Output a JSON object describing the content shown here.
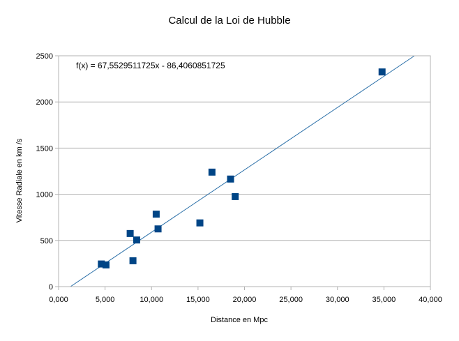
{
  "chart_data": {
    "type": "scatter",
    "title": "Calcul de la Loi de Hubble",
    "xlabel": "Distance en Mpc",
    "ylabel": "Vitesse Radiale en km /s",
    "xlim": [
      0,
      40
    ],
    "ylim": [
      0,
      2500
    ],
    "x_ticks": [
      "0,000",
      "5,000",
      "10,000",
      "15,000",
      "20,000",
      "25,000",
      "30,000",
      "35,000",
      "40,000"
    ],
    "y_ticks": [
      "0",
      "500",
      "1000",
      "1500",
      "2000",
      "2500"
    ],
    "grid": "horizontal",
    "legend": "none",
    "series": [
      {
        "color": "#004586",
        "marker": "square",
        "points": [
          {
            "x": 4.6,
            "y": 245
          },
          {
            "x": 5.1,
            "y": 235
          },
          {
            "x": 7.7,
            "y": 575
          },
          {
            "x": 8.0,
            "y": 280
          },
          {
            "x": 8.4,
            "y": 505
          },
          {
            "x": 10.5,
            "y": 785
          },
          {
            "x": 10.7,
            "y": 625
          },
          {
            "x": 15.2,
            "y": 690
          },
          {
            "x": 16.5,
            "y": 1240
          },
          {
            "x": 18.5,
            "y": 1165
          },
          {
            "x": 19.0,
            "y": 975
          },
          {
            "x": 34.8,
            "y": 2325
          }
        ]
      }
    ],
    "trendline": {
      "type": "linear",
      "slope": 67.5529511725,
      "intercept": -86.4060851725,
      "color": "#2a6fa8",
      "equation": "f(x) = 67,5529511725x - 86,4060851725"
    }
  }
}
